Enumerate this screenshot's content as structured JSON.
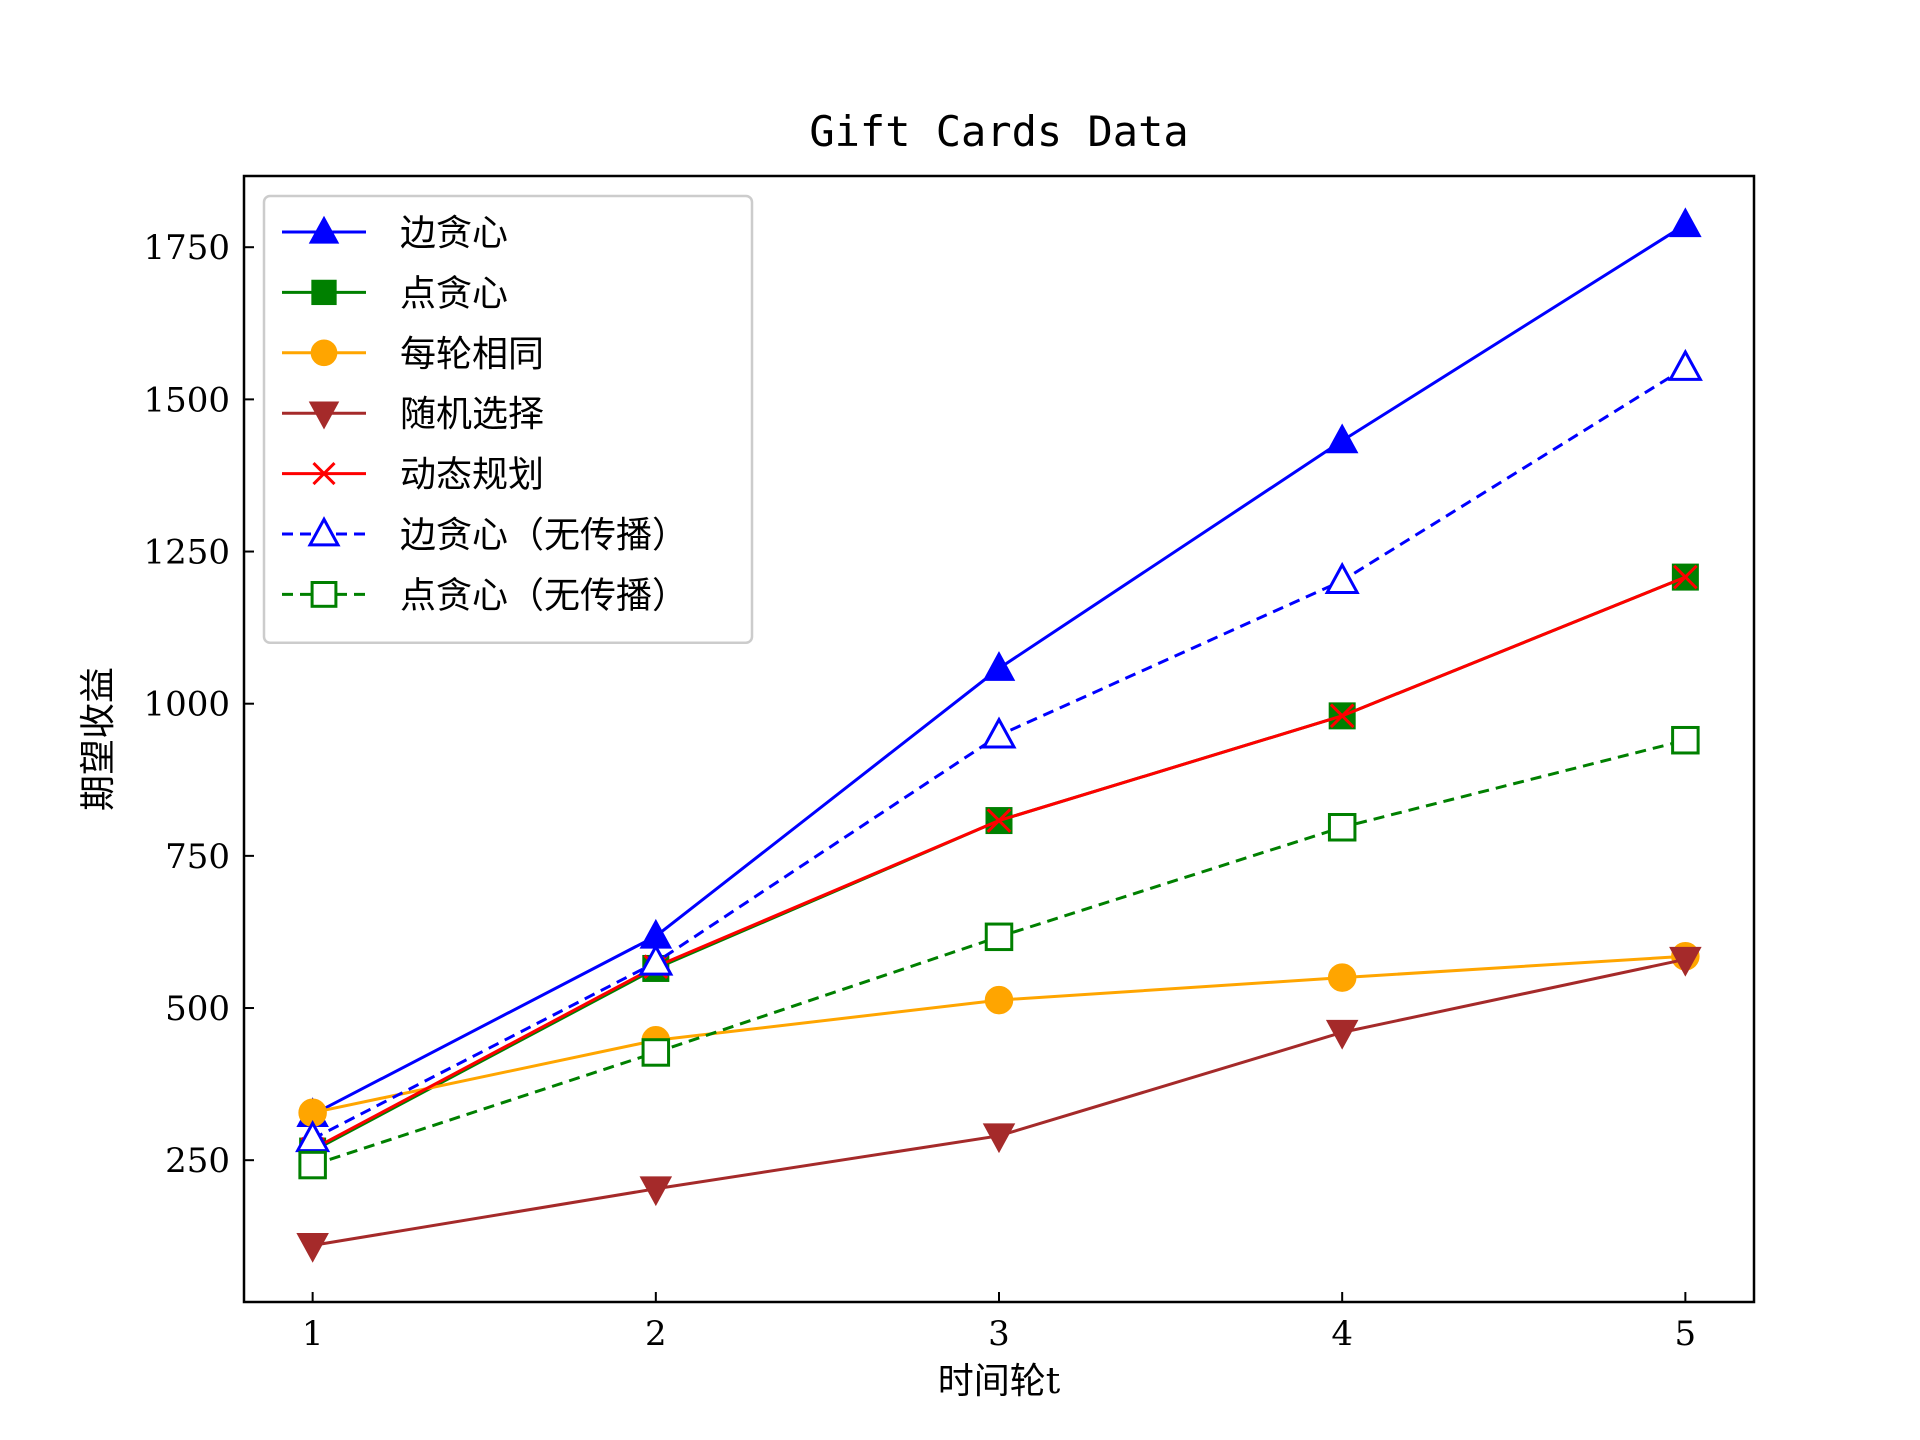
{
  "chart_data": {
    "type": "line",
    "title": "Gift Cards Data",
    "xlabel": "时间轮t",
    "ylabel": "期望收益",
    "x": [
      1,
      2,
      3,
      4,
      5
    ],
    "xlim": [
      0.8,
      5.2
    ],
    "ylim": [
      17,
      1867
    ],
    "xticks": [
      "1",
      "2",
      "3",
      "4",
      "5"
    ],
    "yticks": [
      "250",
      "500",
      "750",
      "1000",
      "1250",
      "1500",
      "1750"
    ],
    "grid": false,
    "legend_position": "top-left",
    "series": [
      {
        "name": "边贪心",
        "values": [
          325,
          618,
          1058,
          1432,
          1787
        ],
        "color": "#0000ff",
        "marker": "triangle-up",
        "filled": true,
        "dashed": false
      },
      {
        "name": "点贪心",
        "values": [
          265,
          565,
          808,
          980,
          1208
        ],
        "color": "#008000",
        "marker": "square",
        "filled": true,
        "dashed": false
      },
      {
        "name": "每轮相同",
        "values": [
          328,
          447,
          513,
          550,
          585
        ],
        "color": "#ffa500",
        "marker": "circle",
        "filled": true,
        "dashed": false
      },
      {
        "name": "随机选择",
        "values": [
          110,
          203,
          290,
          460,
          580
        ],
        "color": "#a52a2a",
        "marker": "triangle-down",
        "filled": true,
        "dashed": false
      },
      {
        "name": "动态规划",
        "values": [
          268,
          568,
          808,
          980,
          1208
        ],
        "color": "#ff0000",
        "marker": "x",
        "filled": false,
        "dashed": false
      },
      {
        "name": "边贪心（无传播）",
        "values": [
          285,
          575,
          948,
          1202,
          1552
        ],
        "color": "#0000ff",
        "marker": "triangle-up",
        "filled": false,
        "dashed": true
      },
      {
        "name": "点贪心（无传播）",
        "values": [
          242,
          427,
          617,
          797,
          940
        ],
        "color": "#008000",
        "marker": "square",
        "filled": false,
        "dashed": true
      }
    ]
  }
}
